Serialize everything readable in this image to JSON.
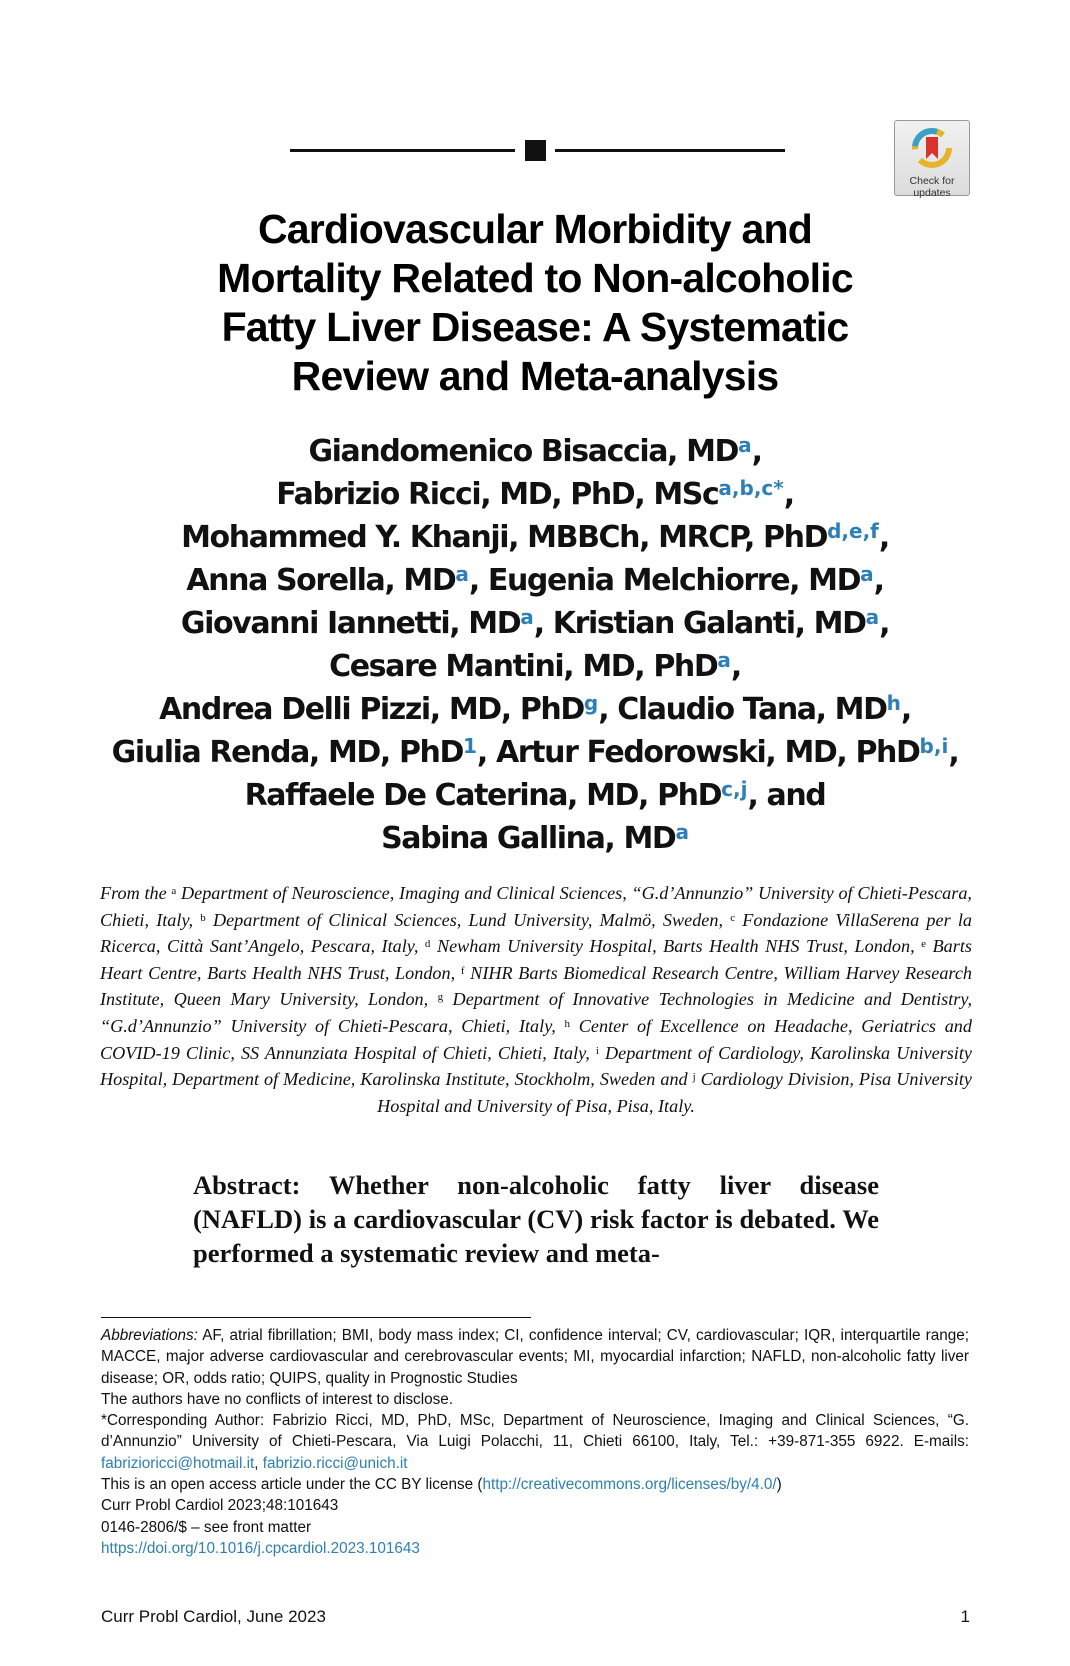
{
  "badge": {
    "line1": "Check for",
    "line2": "updates"
  },
  "title_lines": [
    "Cardiovascular Morbidity and",
    "Mortality Related to Non-alcoholic",
    "Fatty Liver Disease: A Systematic",
    "Review and Meta-analysis"
  ],
  "authors": [
    [
      {
        "t": "Giandomenico Bisaccia, MD"
      },
      {
        "s": "a"
      },
      {
        "t": ","
      }
    ],
    [
      {
        "t": "Fabrizio Ricci, MD, PhD, MSc"
      },
      {
        "s": "a,b,c*"
      },
      {
        "t": ","
      }
    ],
    [
      {
        "t": "Mohammed Y. Khanji, MBBCh, MRCP, PhD"
      },
      {
        "s": "d,e,f"
      },
      {
        "t": ","
      }
    ],
    [
      {
        "t": "Anna Sorella, MD"
      },
      {
        "s": "a"
      },
      {
        "t": ", Eugenia Melchiorre, MD"
      },
      {
        "s": "a"
      },
      {
        "t": ","
      }
    ],
    [
      {
        "t": "Giovanni Iannetti, MD"
      },
      {
        "s": "a"
      },
      {
        "t": ", Kristian Galanti, MD"
      },
      {
        "s": "a"
      },
      {
        "t": ","
      }
    ],
    [
      {
        "t": "Cesare Mantini, MD, PhD"
      },
      {
        "s": "a"
      },
      {
        "t": ","
      }
    ],
    [
      {
        "t": "Andrea Delli Pizzi, MD, PhD"
      },
      {
        "s": "g"
      },
      {
        "t": ", Claudio Tana, MD"
      },
      {
        "s": "h"
      },
      {
        "t": ","
      }
    ],
    [
      {
        "t": "Giulia Renda, MD, PhD"
      },
      {
        "s": "1"
      },
      {
        "t": ", Artur Fedorowski, MD, PhD"
      },
      {
        "s": "b,i"
      },
      {
        "t": ","
      }
    ],
    [
      {
        "t": "Raffaele De Caterina, MD, PhD"
      },
      {
        "s": "c,j"
      },
      {
        "t": ", and"
      }
    ],
    [
      {
        "t": "Sabina Gallina, MD"
      },
      {
        "s": "a"
      }
    ]
  ],
  "affiliations": [
    {
      "t": "From the "
    },
    {
      "s": "a"
    },
    {
      "t": " Department of Neuroscience, Imaging and Clinical Sciences, “G.d’Annunzio” University of Chieti-Pescara, Chieti, Italy, "
    },
    {
      "s": "b"
    },
    {
      "t": " Department of Clinical Sciences, Lund University, Malmö, Sweden, "
    },
    {
      "s": "c"
    },
    {
      "t": " Fondazione VillaSerena per la Ricerca, Città Sant’Angelo, Pescara, Italy, "
    },
    {
      "s": "d"
    },
    {
      "t": " Newham University Hospital, Barts Health NHS Trust, London, "
    },
    {
      "s": "e"
    },
    {
      "t": " Barts Heart Centre, Barts Health NHS Trust, London, "
    },
    {
      "s": "f"
    },
    {
      "t": " NIHR Barts Biomedical Research Centre, William Harvey Research Institute, Queen Mary University, London, "
    },
    {
      "s": "g"
    },
    {
      "t": " Department of Innovative Technologies in Medicine and Dentistry, “G.d’Annunzio” University of Chieti-Pescara, Chieti, Italy, "
    },
    {
      "s": "h"
    },
    {
      "t": " Center of Excellence on Headache, Geriatrics and COVID-19 Clinic, SS Annunziata Hospital of Chieti, Chieti, Italy, "
    },
    {
      "s": "i"
    },
    {
      "t": " Department of Cardiology, Karolinska University Hospital, Department of Medicine, Karolinska Institute, Stockholm, Sweden and "
    },
    {
      "s": "j"
    },
    {
      "t": " Cardiology Division, Pisa University Hospital and University of Pisa, Pisa, Italy."
    }
  ],
  "abstract": "Abstract: Whether non-alcoholic fatty liver disease (NAFLD) is a cardiovascular (CV) risk factor is debated. We performed a systematic review and meta-",
  "footnotes": {
    "abbrev_label": "Abbreviations:",
    "abbrev_text": " AF, atrial fibrillation; BMI, body mass index; CI, confidence interval; CV, cardiovascular; IQR, interquartile range; MACCE, major adverse cardiovascular and cerebrovascular events; MI, myocardial infarction; NAFLD, non-alcoholic fatty liver disease; OR, odds ratio; QUIPS, quality in Prognostic Studies",
    "conflicts": "The authors have no conflicts of interest to disclose.",
    "corresponding": "*Corresponding Author: Fabrizio Ricci, MD, PhD, MSc, Department of Neuroscience, Imaging and Clinical Sciences, “G. d’Annunzio” University of Chieti-Pescara, Via Luigi Polacchi, 11, Chieti 66100, Italy, Tel.: +39-871-355 6922. E-mails: ",
    "email1": "fabrizioricci@hotmail.it",
    "email_sep": ", ",
    "email2": "fabrizio.ricci@unich.it",
    "license_text": " This is an open access article under the CC BY license (",
    "license_link": "http://creativecommons.org/licenses/by/4.0/",
    "license_close": ")",
    "journal_ref": "Curr Probl Cardiol 2023;48:101643",
    "issn": "0146-2806/$ – see front matter",
    "doi": "https://doi.org/10.1016/j.cpcardiol.2023.101643"
  },
  "footer": {
    "left": "Curr Probl Cardiol, June 2023",
    "right": "1"
  },
  "colors": {
    "link": "#2d7fb8",
    "text": "#111111"
  }
}
